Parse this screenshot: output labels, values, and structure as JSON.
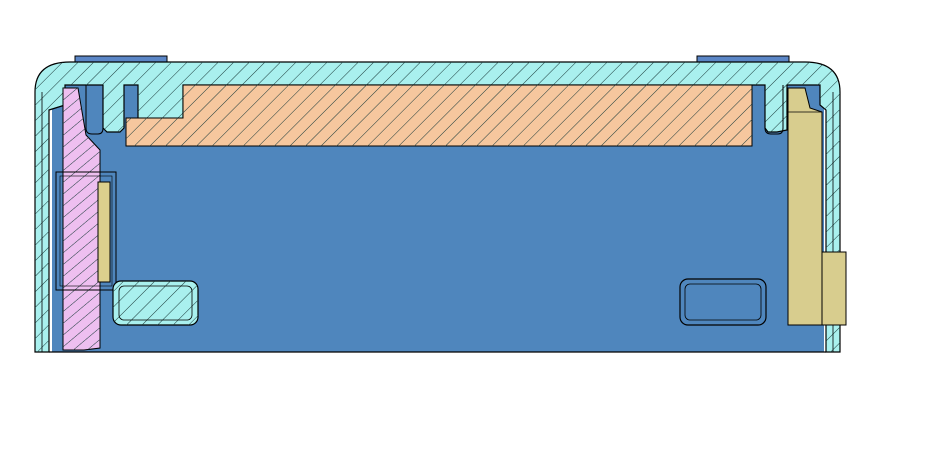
{
  "drawing": {
    "type": "cross-section",
    "labels": [],
    "colors": {
      "background": "#ffffff",
      "outline": "#000000",
      "interior": "#4f86bd",
      "housing": "#a9f0ee",
      "plate": "#f6c79e",
      "left_part": "#eebff0",
      "right_part": "#d8cd8e",
      "tabs": "#5b86c6",
      "window_fill": "#dcd08d",
      "hatch": "#1a3a3a"
    }
  }
}
